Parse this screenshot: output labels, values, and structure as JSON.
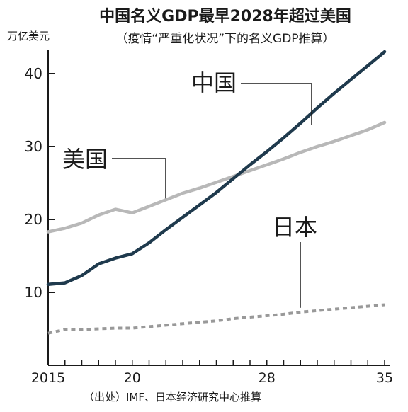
{
  "chart_data": {
    "type": "line",
    "title": "中国名义GDP最早2028年超过美国",
    "subtitle": "（疫情“严重化状况”下的名义GDP推算）",
    "ylabel": "万亿美元",
    "xlabel": "",
    "source": "（出处）IMF、日本经济研究中心推算",
    "x_ticks": [
      "2015",
      "20",
      "28",
      "35"
    ],
    "y_ticks": [
      "10",
      "20",
      "30",
      "40"
    ],
    "xlim": [
      2015,
      2035
    ],
    "ylim": [
      5,
      45
    ],
    "grid": false,
    "x": [
      2015,
      2016,
      2017,
      2018,
      2019,
      2020,
      2021,
      2022,
      2023,
      2024,
      2025,
      2026,
      2027,
      2028,
      2029,
      2030,
      2031,
      2032,
      2033,
      2034,
      2035
    ],
    "series": [
      {
        "name": "中国",
        "color": "#1f3a4d",
        "style": "solid",
        "values": [
          11.1,
          11.3,
          12.3,
          13.9,
          14.7,
          15.3,
          16.8,
          18.6,
          20.3,
          22.0,
          23.7,
          25.6,
          27.5,
          29.3,
          31.2,
          33.2,
          35.3,
          37.3,
          39.2,
          41.1,
          43.0
        ]
      },
      {
        "name": "美国",
        "color": "#b8b8b8",
        "style": "solid",
        "values": [
          18.3,
          18.8,
          19.5,
          20.6,
          21.4,
          20.9,
          21.8,
          22.7,
          23.6,
          24.3,
          25.1,
          25.9,
          26.7,
          27.5,
          28.3,
          29.2,
          30.0,
          30.7,
          31.5,
          32.3,
          33.3
        ]
      },
      {
        "name": "日本",
        "color": "#999999",
        "style": "dashed",
        "values": [
          4.4,
          4.9,
          4.9,
          5.0,
          5.1,
          5.1,
          5.3,
          5.5,
          5.7,
          5.9,
          6.1,
          6.4,
          6.6,
          6.8,
          7.0,
          7.3,
          7.5,
          7.7,
          7.9,
          8.1,
          8.3
        ]
      }
    ]
  }
}
